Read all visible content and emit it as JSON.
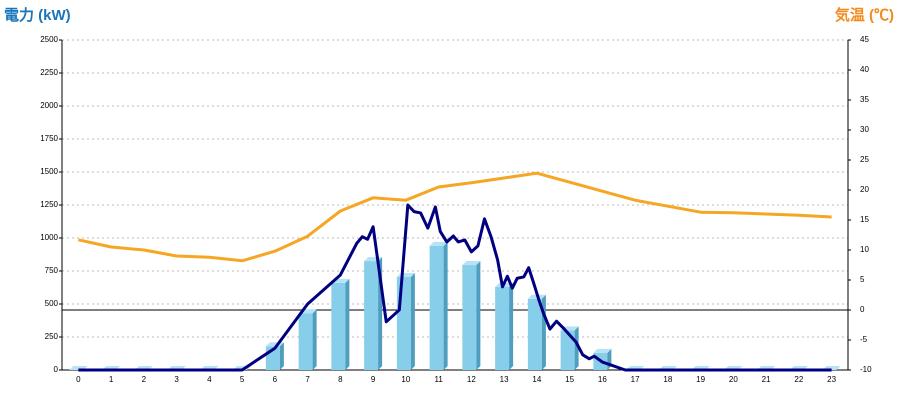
{
  "chart_data": {
    "type": "bar",
    "y_label": "電力 (kW)",
    "y2_label": "気温 (℃)",
    "categories": [
      "0",
      "1",
      "2",
      "3",
      "4",
      "5",
      "6",
      "7",
      "8",
      "9",
      "10",
      "11",
      "12",
      "13",
      "14",
      "15",
      "16",
      "17",
      "18",
      "19",
      "20",
      "21",
      "22",
      "23"
    ],
    "ylim": [
      0,
      2500
    ],
    "yticks": [
      0,
      250,
      500,
      750,
      1000,
      1250,
      1500,
      1750,
      2000,
      2250,
      2500
    ],
    "y2lim": [
      -10,
      45
    ],
    "y2ticks": [
      -10,
      -5,
      0,
      5,
      10,
      15,
      20,
      25,
      30,
      35,
      40,
      45
    ],
    "grid": true,
    "series": [
      {
        "type": "bar",
        "color": "#87ceeb",
        "values": [
          0,
          0,
          0,
          0,
          0,
          0,
          180,
          430,
          660,
          825,
          705,
          940,
          795,
          630,
          540,
          300,
          130,
          0,
          0,
          0,
          0,
          0,
          0,
          0
        ]
      },
      {
        "type": "line",
        "color": "#f5a623",
        "axis": "y2",
        "values": [
          11.7,
          10.5,
          10,
          9,
          8.8,
          8.2,
          9.8,
          12.3,
          16.5,
          18.7,
          18.3,
          20.5,
          21.2,
          22,
          22.8,
          21.3,
          19.8,
          18.3,
          17.3,
          16.3,
          16.2,
          16,
          15.8,
          15.5
        ]
      },
      {
        "type": "line",
        "color": "#000080",
        "x": [
          0,
          5,
          6,
          7,
          8,
          8.5,
          8.67,
          8.83,
          9,
          9.4,
          9.8,
          10.06,
          10.25,
          10.45,
          10.67,
          10.9,
          11.05,
          11.25,
          11.45,
          11.6,
          11.8,
          12,
          12.2,
          12.4,
          12.6,
          12.8,
          12.95,
          13.1,
          13.25,
          13.4,
          13.6,
          13.75,
          13.9,
          14.05,
          14.2,
          14.4,
          14.6,
          14.8,
          15,
          15.2,
          15.4,
          15.6,
          15.75,
          16,
          16.7,
          23
        ],
        "values": [
          0,
          0,
          165,
          500,
          720,
          960,
          1010,
          990,
          1085,
          365,
          455,
          1250,
          1200,
          1190,
          1075,
          1235,
          1050,
          970,
          1015,
          970,
          985,
          895,
          940,
          1145,
          1010,
          835,
          630,
          710,
          620,
          695,
          705,
          775,
          660,
          540,
          430,
          310,
          370,
          320,
          265,
          210,
          115,
          85,
          105,
          60,
          0,
          0
        ]
      }
    ]
  }
}
